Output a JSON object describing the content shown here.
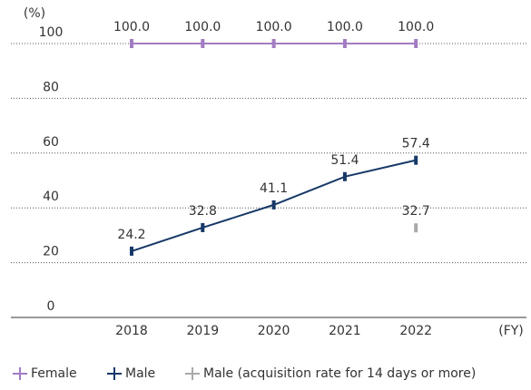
{
  "chart_data": {
    "type": "line",
    "y_label": "(%)",
    "x_label": "(FY)",
    "categories": [
      "2018",
      "2019",
      "2020",
      "2021",
      "2022"
    ],
    "series": [
      {
        "name": "Female",
        "color": "#a27cc2",
        "values": [
          100,
          100,
          100,
          100,
          100
        ],
        "value_labels": [
          "100.0",
          "100.0",
          "100.0",
          "100.0",
          "100.0"
        ]
      },
      {
        "name": "Male",
        "color": "#173968",
        "values": [
          24.2,
          32.8,
          41.1,
          51.4,
          57.4
        ]
      },
      {
        "name": "Male (acquisition rate for 14 days or more)",
        "color": "#a9a9a9",
        "values": [
          null,
          null,
          null,
          null,
          32.7
        ]
      }
    ],
    "ylim": [
      0,
      100
    ],
    "yticks": [
      0,
      20,
      40,
      60,
      80,
      100
    ],
    "grid": true
  }
}
